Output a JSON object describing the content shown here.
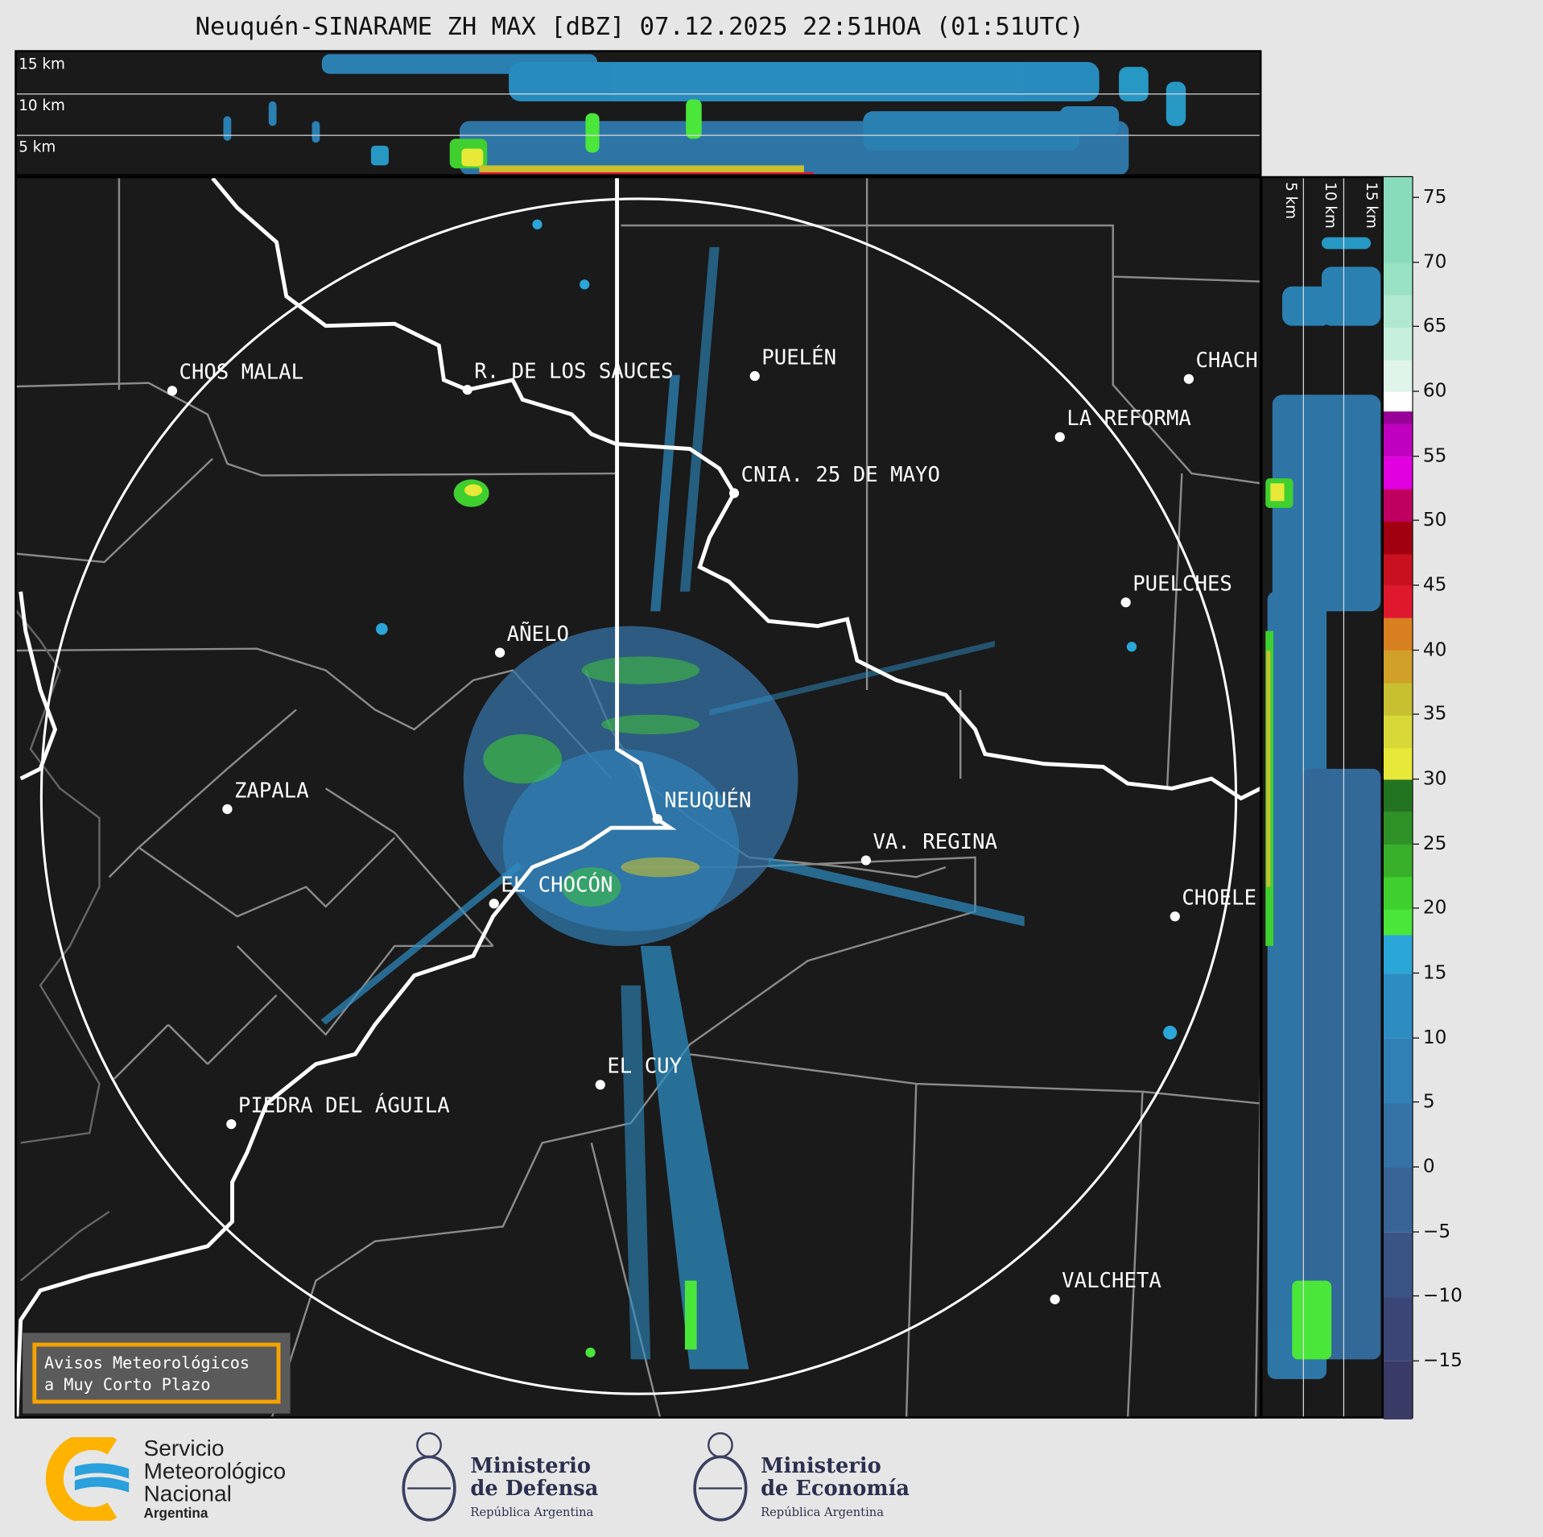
{
  "title": "Neuquén-SINARAME ZH MAX [dBZ] 07.12.2025 22:51HOA (01:51UTC)",
  "top_panel": {
    "height_labels": [
      "15 km",
      "10 km",
      "5 km"
    ]
  },
  "side_panel": {
    "height_labels": [
      "5 km",
      "10 km",
      "15 km"
    ]
  },
  "cities": [
    "CHOS MALAL",
    "R. DE LOS SAUCES",
    "PUELÉN",
    "CHACH",
    "LA REFORMA",
    "CNIA. 25 DE MAYO",
    "PUELCHES",
    "AÑELO",
    "ZAPALA",
    "NEUQUÉN",
    "VA. REGINA",
    "EL CHOCÓN",
    "CHOELE",
    "EL CUY",
    "PIEDRA DEL ÁGUILA",
    "VALCHETA"
  ],
  "colorbar": {
    "unit": "dBZ",
    "range": [
      -19.5,
      76.6
    ],
    "ticks": [
      "75",
      "70",
      "65",
      "60",
      "55",
      "50",
      "45",
      "40",
      "35",
      "30",
      "25",
      "20",
      "15",
      "10",
      "5",
      "0",
      "−5",
      "−10",
      "−15"
    ],
    "tick_values": [
      75,
      70,
      65,
      60,
      55,
      50,
      45,
      40,
      35,
      30,
      25,
      20,
      15,
      10,
      5,
      0,
      -5,
      -10,
      -15
    ],
    "bands": [
      [
        -19.5,
        "#3a3a66"
      ],
      [
        -15,
        "#3c4676"
      ],
      [
        -10,
        "#3b5486"
      ],
      [
        -5,
        "#386496"
      ],
      [
        0,
        "#3572a6"
      ],
      [
        5,
        "#3180b6"
      ],
      [
        10,
        "#2d8cc2"
      ],
      [
        15,
        "#2aa6d8"
      ],
      [
        18,
        "#4ae63a"
      ],
      [
        20,
        "#3fcf2f"
      ],
      [
        22.5,
        "#38b02a"
      ],
      [
        25,
        "#2e9226"
      ],
      [
        27.5,
        "#237420"
      ],
      [
        30,
        "#e8e838"
      ],
      [
        32.5,
        "#d8d838"
      ],
      [
        35,
        "#c8c030"
      ],
      [
        37.5,
        "#d0a028"
      ],
      [
        40,
        "#d88020"
      ],
      [
        42.5,
        "#e0182e"
      ],
      [
        45,
        "#c81020"
      ],
      [
        47.5,
        "#a00010"
      ],
      [
        50,
        "#c00060"
      ],
      [
        52.5,
        "#e000e0"
      ],
      [
        55,
        "#c000c0"
      ],
      [
        57.5,
        "#980098"
      ],
      [
        58.5,
        "#ffffff"
      ],
      [
        60,
        "#e0f5ea"
      ],
      [
        62.5,
        "#c6efdc"
      ],
      [
        65,
        "#b0e8d0"
      ],
      [
        67.5,
        "#9ae2c4"
      ],
      [
        70,
        "#88dcbc"
      ],
      [
        76.6,
        "#88dcbc"
      ]
    ]
  },
  "aviso": {
    "line1": "Avisos Meteorológicos",
    "line2": "a Muy Corto Plazo"
  },
  "footer": {
    "smn": [
      "Servicio",
      "Meteorológico",
      "Nacional",
      "Argentina"
    ],
    "defensa": {
      "l1": "Ministerio",
      "l2": "de Defensa",
      "sub": "República Argentina"
    },
    "economia": {
      "l1": "Ministerio",
      "l2": "de Economía",
      "sub": "República Argentina"
    }
  },
  "colors": {
    "map_bg": "#1a1a1a",
    "river": "#ffffff",
    "border": "#8a8a8a",
    "page_bg": "#e6e6e6",
    "aviso_border": "#f5a300"
  }
}
